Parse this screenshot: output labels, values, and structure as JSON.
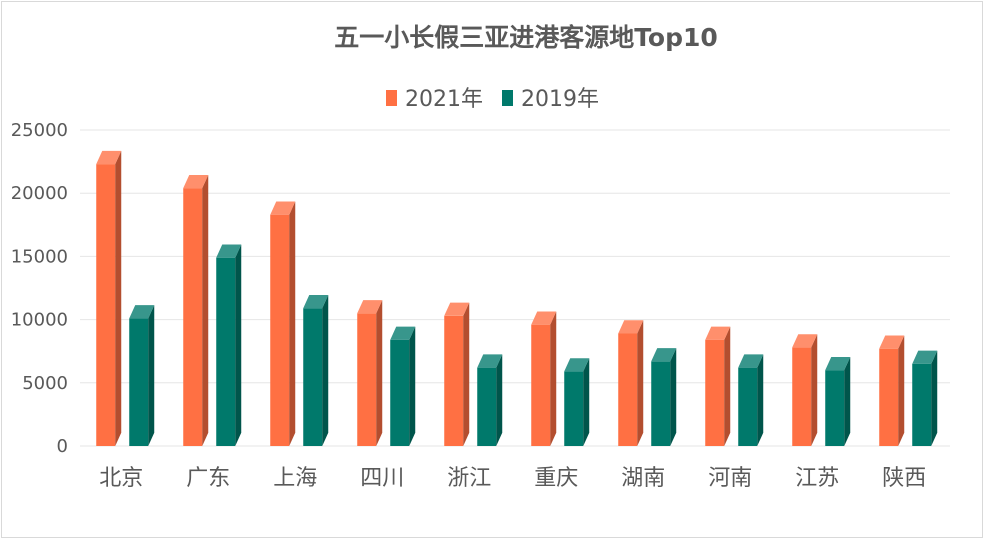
{
  "chart_data": {
    "type": "bar",
    "title": "五一小长假三亚进港客源地Top10",
    "xlabel": "",
    "ylabel": "",
    "ylim": [
      0,
      25000
    ],
    "yticks": [
      0,
      5000,
      10000,
      15000,
      20000,
      25000
    ],
    "grid": true,
    "legend_position": "top-center",
    "categories": [
      "北京",
      "广东",
      "上海",
      "四川",
      "浙江",
      "重庆",
      "湖南",
      "河南",
      "江苏",
      "陕西"
    ],
    "series": [
      {
        "name": "2021年",
        "color": "#FF7043",
        "values": [
          22300,
          20400,
          18300,
          10500,
          10300,
          9600,
          8900,
          8400,
          7800,
          7700
        ]
      },
      {
        "name": "2019年",
        "color": "#00796B",
        "values": [
          10100,
          14900,
          10900,
          8400,
          6200,
          5900,
          6700,
          6200,
          6000,
          6500
        ]
      }
    ]
  }
}
